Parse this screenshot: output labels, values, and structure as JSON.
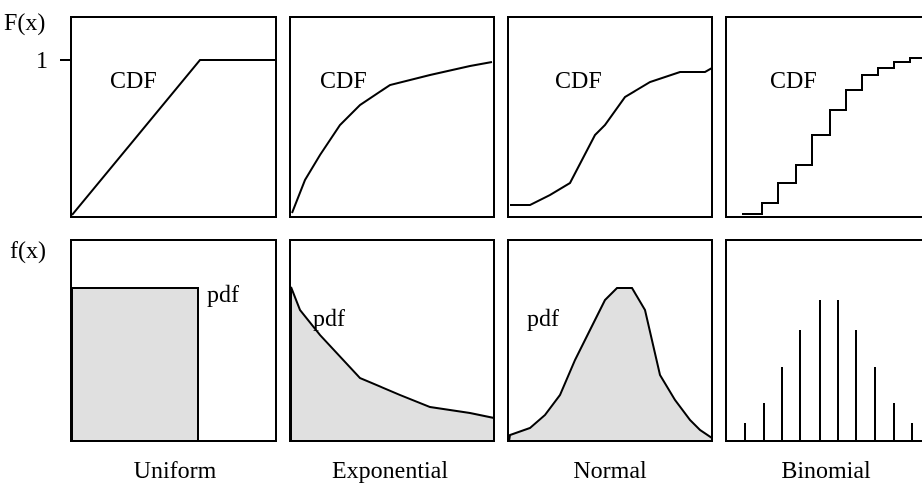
{
  "axes": {
    "cdf_axis": "F(x)",
    "cdf_one": "1",
    "pdf_axis": "f(x)"
  },
  "panels": [
    {
      "name": "Uniform",
      "cdf": "CDF",
      "pdf": "pdf"
    },
    {
      "name": "Exponential",
      "cdf": "CDF",
      "pdf": "pdf"
    },
    {
      "name": "Normal",
      "cdf": "CDF",
      "pdf": "pdf"
    },
    {
      "name": "Binomial",
      "cdf": "CDF"
    }
  ]
}
